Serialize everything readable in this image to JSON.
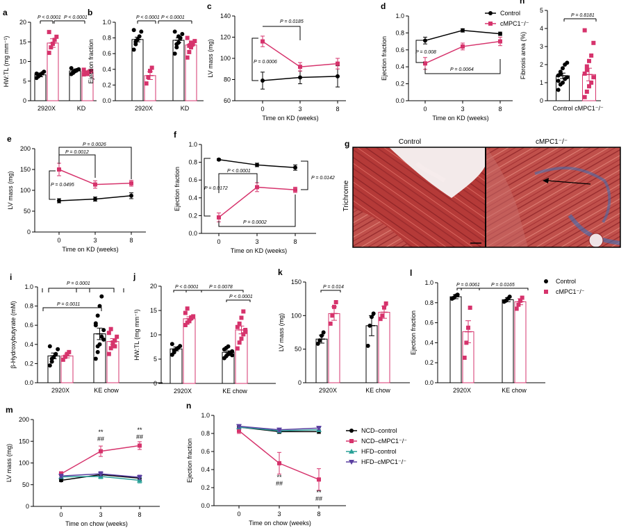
{
  "colors": {
    "control": "#000000",
    "ko": "#d6336c",
    "hfd_control": "#2aa198",
    "hfd_ko": "#5a3fa0",
    "collagen": "#3d6fb5"
  },
  "chart_data": [
    {
      "panel": "a",
      "type": "bar",
      "title": "",
      "ylabel": "HW:TL (mg mm⁻¹)",
      "ylim": [
        0,
        20
      ],
      "yticks": [
        0,
        5,
        10,
        15,
        20
      ],
      "groups": [
        "2920X",
        "KD"
      ],
      "series": [
        {
          "color": "control",
          "values": [
            6.6,
            7.6
          ],
          "errs": [
            0.5,
            0.3
          ]
        },
        {
          "color": "ko",
          "values": [
            14.7,
            7.3
          ],
          "errs": [
            1.1,
            0.3
          ]
        }
      ],
      "points": [
        [
          [
            5.8,
            6.2,
            6.6,
            7.0,
            7.4,
            6.9
          ],
          [
            6.8,
            7.1,
            7.5,
            7.8,
            8.0,
            8.3,
            7.3,
            7.7
          ]
        ],
        [
          [
            12.2,
            13.6,
            14.5,
            15.5,
            16.3,
            17.5
          ],
          [
            6.7,
            6.9,
            7.2,
            7.4,
            7.6,
            7.9,
            7.1,
            6.8
          ]
        ]
      ],
      "annotations": [
        "P < 0.0001",
        "P < 0.0001"
      ]
    },
    {
      "panel": "b",
      "type": "bar",
      "title": "",
      "ylabel": "Ejection fraction",
      "ylim": [
        0,
        1
      ],
      "yticks": [
        0,
        0.2,
        0.4,
        0.6,
        0.8,
        1.0
      ],
      "groups": [
        "2920X",
        "KD"
      ],
      "series": [
        {
          "color": "control",
          "values": [
            0.78,
            0.77
          ],
          "errs": [
            0.03,
            0.03
          ]
        },
        {
          "color": "ko",
          "values": [
            0.32,
            0.71
          ],
          "errs": [
            0.05,
            0.02
          ]
        }
      ],
      "points": [
        [
          [
            0.65,
            0.72,
            0.78,
            0.82,
            0.88,
            0.9,
            0.75
          ],
          [
            0.6,
            0.68,
            0.74,
            0.8,
            0.85,
            0.88,
            0.72,
            0.82
          ]
        ],
        [
          [
            0.22,
            0.3,
            0.38,
            0.42
          ],
          [
            0.55,
            0.62,
            0.68,
            0.72,
            0.76,
            0.8,
            0.7,
            0.74
          ]
        ]
      ],
      "annotations": [
        "P < 0.0001",
        "P < 0.0001"
      ]
    },
    {
      "panel": "c",
      "type": "line",
      "title": "",
      "xlabel": "Time on KD (weeks)",
      "ylabel": "LV mass (mg)",
      "ylim": [
        60,
        140
      ],
      "yticks": [
        60,
        80,
        100,
        120,
        140
      ],
      "x": [
        0,
        3,
        8
      ],
      "series": [
        {
          "color": "control",
          "values": [
            79,
            82,
            83
          ],
          "errs": [
            8,
            6,
            10
          ]
        },
        {
          "color": "ko",
          "values": [
            116,
            92,
            95
          ],
          "errs": [
            5,
            4,
            5
          ]
        }
      ],
      "annotations": [
        "P = 0.0185",
        "P = 0.0006"
      ]
    },
    {
      "panel": "d",
      "type": "line",
      "title": "",
      "xlabel": "Time on KD (weeks)",
      "ylabel": "Ejection fraction",
      "ylim": [
        0,
        1
      ],
      "yticks": [
        0,
        0.2,
        0.4,
        0.6,
        0.8,
        1.0
      ],
      "x": [
        0,
        3,
        8
      ],
      "series": [
        {
          "name": "Control",
          "color": "control",
          "values": [
            0.71,
            0.83,
            0.79
          ],
          "errs": [
            0.04,
            0.02,
            0.02
          ]
        },
        {
          "name": "cMPC1⁻/⁻",
          "color": "ko",
          "values": [
            0.44,
            0.64,
            0.7
          ],
          "errs": [
            0.07,
            0.04,
            0.05
          ]
        }
      ],
      "annotations": [
        "P = 0.008",
        "P = 0.0064"
      ]
    },
    {
      "panel": "h",
      "type": "bar",
      "title": "",
      "ylabel": "Fibrosis area (%)",
      "ylim": [
        0,
        5
      ],
      "yticks": [
        0,
        1,
        2,
        3,
        4,
        5
      ],
      "categories": [
        "Control",
        "cMPC1⁻/⁻"
      ],
      "series": [
        {
          "color": [
            "control",
            "ko"
          ],
          "values": [
            1.38,
            1.45
          ],
          "errs": [
            0.15,
            0.35
          ]
        }
      ],
      "points": [
        [
          0.6,
          0.9,
          1.0,
          1.2,
          1.3,
          1.4,
          1.6,
          1.8,
          2.0,
          2.1,
          1.1,
          1.5
        ],
        [
          0.2,
          0.5,
          0.8,
          1.0,
          1.3,
          1.5,
          1.9,
          2.2,
          2.5,
          3.2,
          3.9,
          1.7
        ]
      ],
      "annotations": [
        "P = 0.8181"
      ]
    },
    {
      "panel": "e",
      "type": "line",
      "title": "",
      "xlabel": "Time on KD (weeks)",
      "ylabel": "LV mass (mg)",
      "ylim": [
        0,
        200
      ],
      "yticks": [
        0,
        50,
        100,
        150,
        200
      ],
      "x": [
        0,
        3,
        8
      ],
      "series": [
        {
          "color": "control",
          "values": [
            75,
            79,
            87
          ],
          "errs": [
            5,
            5,
            7
          ]
        },
        {
          "color": "ko",
          "values": [
            150,
            114,
            117
          ],
          "errs": [
            15,
            9,
            7
          ]
        }
      ],
      "annotations": [
        "P = 0.0026",
        "P = 0.0012",
        "P = 0.0495"
      ]
    },
    {
      "panel": "f",
      "type": "line",
      "title": "",
      "xlabel": "Time on KD (weeks)",
      "ylabel": "Ejection fraction",
      "ylim": [
        0,
        1
      ],
      "yticks": [
        0,
        0.2,
        0.4,
        0.6,
        0.8,
        1.0
      ],
      "x": [
        0,
        3,
        8
      ],
      "series": [
        {
          "color": "control",
          "values": [
            0.83,
            0.77,
            0.74
          ],
          "errs": [
            0.01,
            0.02,
            0.03
          ]
        },
        {
          "color": "ko",
          "values": [
            0.18,
            0.52,
            0.49
          ],
          "errs": [
            0.05,
            0.05,
            0.03
          ]
        }
      ],
      "annotations": [
        "P < 0.0001",
        "P = 0.0172",
        "P = 0.0002",
        "P = 0.0142"
      ]
    },
    {
      "panel": "i",
      "type": "bar",
      "title": "",
      "ylabel": "β-Hydroxybutyrate (mM)",
      "ylim": [
        0,
        1
      ],
      "yticks": [
        0,
        0.2,
        0.4,
        0.6,
        0.8,
        1.0
      ],
      "groups": [
        "2920X",
        "KE chow"
      ],
      "series": [
        {
          "color": "control",
          "values": [
            0.28,
            0.51
          ],
          "errs": [
            0.03,
            0.06
          ]
        },
        {
          "color": "ko",
          "values": [
            0.28,
            0.43
          ],
          "errs": [
            0.02,
            0.03
          ]
        }
      ],
      "points": [
        [
          [
            0.18,
            0.22,
            0.27,
            0.3,
            0.35,
            0.38,
            0.25
          ],
          [
            0.25,
            0.32,
            0.4,
            0.48,
            0.55,
            0.62,
            0.7,
            0.8,
            0.9,
            0.45,
            0.6,
            0.38
          ]
        ],
        [
          [
            0.24,
            0.27,
            0.3,
            0.32
          ],
          [
            0.3,
            0.36,
            0.4,
            0.44,
            0.48,
            0.52,
            0.56,
            0.42,
            0.38
          ]
        ]
      ],
      "annotations": [
        "P = 0.0001",
        "P = 0.0011"
      ]
    },
    {
      "panel": "j",
      "type": "bar",
      "title": "",
      "ylabel": "HW:TL (mg mm⁻¹)",
      "ylim": [
        0,
        20
      ],
      "yticks": [
        0,
        5,
        10,
        15,
        20
      ],
      "groups": [
        "2920X",
        "KE chow"
      ],
      "series": [
        {
          "color": "control",
          "values": [
            7.1,
            6.4
          ],
          "errs": [
            0.4,
            0.3
          ]
        },
        {
          "color": "ko",
          "values": [
            13.3,
            11.0
          ],
          "errs": [
            0.4,
            0.8
          ]
        }
      ],
      "points": [
        [
          [
            5.9,
            6.4,
            7.0,
            7.3,
            7.7,
            8.1,
            6.8
          ],
          [
            5.2,
            5.6,
            6.0,
            6.3,
            6.6,
            7.0,
            7.3,
            7.6,
            6.1,
            5.8
          ]
        ],
        [
          [
            12.0,
            12.5,
            13.0,
            13.4,
            13.8,
            14.5,
            15.4,
            12.8,
            13.6
          ],
          [
            7.2,
            8.4,
            9.2,
            10.1,
            11.0,
            11.6,
            12.3,
            13.5,
            14.8,
            10.6
          ]
        ]
      ],
      "annotations": [
        "P < 0.0001",
        "P = 0.0078",
        "P < 0.0001"
      ]
    },
    {
      "panel": "k",
      "type": "bar",
      "title": "",
      "ylabel": "LV mass (mg)",
      "ylim": [
        0,
        150
      ],
      "yticks": [
        0,
        50,
        100,
        150
      ],
      "groups": [
        "2920X",
        "KE chow"
      ],
      "series": [
        {
          "color": "control",
          "values": [
            65,
            85
          ],
          "errs": [
            6,
            15
          ]
        },
        {
          "color": "ko",
          "values": [
            103,
            105
          ],
          "errs": [
            10,
            9
          ]
        }
      ],
      "points": [
        [
          [
            58,
            63,
            70,
            75
          ],
          [
            55,
            85,
            98,
            103
          ]
        ],
        [
          [
            88,
            100,
            113,
            120
          ],
          [
            95,
            100,
            112,
            118
          ]
        ]
      ],
      "annotations": [
        "P = 0.014"
      ]
    },
    {
      "panel": "l",
      "type": "bar",
      "title": "",
      "ylabel": "Ejection fraction",
      "ylim": [
        0,
        1
      ],
      "yticks": [
        0,
        0.2,
        0.4,
        0.6,
        0.8,
        1.0
      ],
      "groups": [
        "2920X",
        "KE chow"
      ],
      "series": [
        {
          "name": "Control",
          "color": "control",
          "values": [
            0.86,
            0.83
          ],
          "errs": [
            0.02,
            0.02
          ]
        },
        {
          "name": "cMPC1⁻/⁻",
          "color": "ko",
          "values": [
            0.51,
            0.81
          ],
          "errs": [
            0.11,
            0.03
          ]
        }
      ],
      "points": [
        [
          [
            0.84,
            0.85,
            0.87,
            0.88
          ],
          [
            0.81,
            0.82,
            0.84,
            0.86
          ]
        ],
        [
          [
            0.25,
            0.4,
            0.55,
            0.75
          ],
          [
            0.74,
            0.78,
            0.82,
            0.85
          ]
        ]
      ],
      "annotations": [
        "P = 0.0061",
        "P = 0.0165"
      ]
    },
    {
      "panel": "m",
      "type": "line",
      "title": "",
      "xlabel": "Time on chow (weeks)",
      "ylabel": "LV mass (mg)",
      "ylim": [
        0,
        200
      ],
      "yticks": [
        0,
        50,
        100,
        150,
        200
      ],
      "x": [
        0,
        3,
        8
      ],
      "series": [
        {
          "color": "control",
          "values": [
            60,
            73,
            65
          ],
          "errs": [
            3,
            5,
            5
          ]
        },
        {
          "color": "ko",
          "values": [
            75,
            127,
            140
          ],
          "errs": [
            5,
            12,
            9
          ]
        },
        {
          "color": "hfd_control",
          "values": [
            68,
            69,
            60
          ],
          "errs": [
            4,
            5,
            6
          ]
        },
        {
          "color": "hfd_ko",
          "values": [
            70,
            75,
            67
          ],
          "errs": [
            4,
            5,
            5
          ]
        }
      ],
      "sig": [
        {
          "x": 3,
          "lines": [
            "**",
            "##"
          ]
        },
        {
          "x": 8,
          "lines": [
            "**",
            "##"
          ]
        }
      ]
    },
    {
      "panel": "n",
      "type": "line",
      "title": "",
      "xlabel": "Time on chow (weeks)",
      "ylabel": "Ejection fraction",
      "ylim": [
        0,
        1
      ],
      "yticks": [
        0,
        0.2,
        0.4,
        0.6,
        0.8,
        1.0
      ],
      "x": [
        0,
        3,
        8
      ],
      "series": [
        {
          "name": "NCD–control",
          "color": "control",
          "values": [
            0.87,
            0.82,
            0.82
          ],
          "errs": [
            0.02,
            0.02,
            0.02
          ]
        },
        {
          "name": "NCD–cMPC1⁻/⁻",
          "color": "ko",
          "values": [
            0.83,
            0.47,
            0.29
          ],
          "errs": [
            0.03,
            0.12,
            0.12
          ]
        },
        {
          "name": "HFD–control",
          "color": "hfd_control",
          "values": [
            0.87,
            0.83,
            0.84
          ],
          "errs": [
            0.02,
            0.02,
            0.02
          ]
        },
        {
          "name": "HFD–cMPC1⁻/⁻",
          "color": "hfd_ko",
          "values": [
            0.88,
            0.84,
            0.86
          ],
          "errs": [
            0.02,
            0.02,
            0.02
          ]
        }
      ],
      "sig": [
        {
          "x": 3,
          "lines": [
            "**",
            "##"
          ]
        },
        {
          "x": 8,
          "lines": [
            "**",
            "##"
          ]
        }
      ]
    }
  ],
  "histology": {
    "panel": "g",
    "ylabel": "Trichrome",
    "columns": [
      "Control",
      "cMPC1⁻/⁻"
    ]
  }
}
